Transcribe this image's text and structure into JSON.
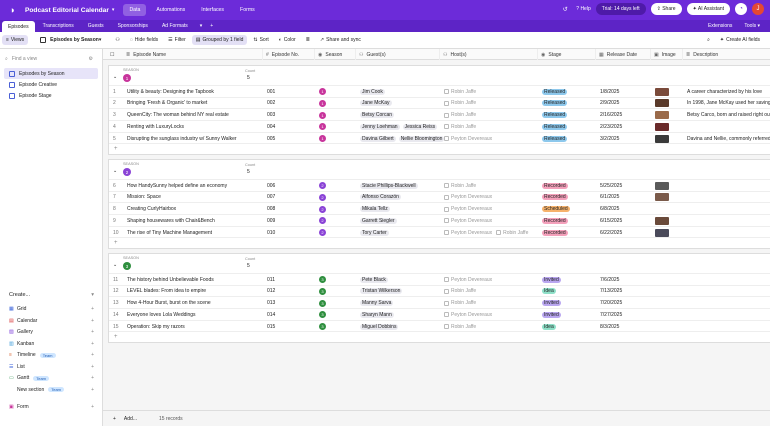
{
  "app": {
    "title": "Podcast Editorial Calendar",
    "nav": [
      "Data",
      "Automations",
      "Interfaces",
      "Forms"
    ],
    "help": "Help",
    "trial": "Trial: 14 days left",
    "share": "Share",
    "ai": "AI Assistant",
    "avatar": "J"
  },
  "tabs": {
    "items": [
      "Episodes",
      "Transcriptions",
      "Guests",
      "Sponsorships",
      "Ad Formats"
    ],
    "extensions": "Extensions",
    "tools": "Tools"
  },
  "toolbar": {
    "views": "Views",
    "view_name": "Episodes by Season",
    "hide": "Hide fields",
    "filter": "Filter",
    "group": "Grouped by 1 field",
    "sort": "Sort",
    "color": "Color",
    "share": "Share and sync",
    "ai_fields": "Create AI fields"
  },
  "sidebar": {
    "find": "Find a view",
    "views": [
      "Episodes by Season",
      "Episode Creative",
      "Episode Stage"
    ],
    "create_label": "Create...",
    "create_items": [
      {
        "label": "Grid",
        "team": ""
      },
      {
        "label": "Calendar",
        "team": ""
      },
      {
        "label": "Gallery",
        "team": ""
      },
      {
        "label": "Kanban",
        "team": ""
      },
      {
        "label": "Timeline",
        "team": "Team"
      },
      {
        "label": "List",
        "team": ""
      },
      {
        "label": "Gantt",
        "team": "Team"
      },
      {
        "label": "New section",
        "team": "Team"
      },
      {
        "label": "Form",
        "team": ""
      }
    ]
  },
  "columns": [
    "Episode Name",
    "Episode No.",
    "Season",
    "Guest(s)",
    "Host(s)",
    "Stage",
    "Release Date",
    "Image",
    "Description"
  ],
  "group_label": "SEASON",
  "count_label": "Count",
  "groups": [
    {
      "num": "1",
      "color": "#c8359c",
      "count": "5",
      "rows": [
        {
          "i": "1",
          "name": "Utility & beauty: Designing the Tapbook",
          "no": "001",
          "guests": [
            "Jim Cook"
          ],
          "hosts": [
            "Robin Jaffe"
          ],
          "stage": "Released",
          "sc": "#8dc8ec",
          "date": "1/8/2025",
          "img": "#7a4a3a",
          "desc": "A career characterized by his love"
        },
        {
          "i": "2",
          "name": "Bringing 'Fresh & Organic' to market",
          "no": "002",
          "guests": [
            "Jane McKay"
          ],
          "hosts": [
            "Robin Jaffe"
          ],
          "stage": "Released",
          "sc": "#8dc8ec",
          "date": "2/9/2025",
          "img": "#5a3a2a",
          "desc": "In 1998, Jane McKay used her savings"
        },
        {
          "i": "3",
          "name": "QueenCity: The woman behind NY real estate",
          "no": "003",
          "guests": [
            "Betsy Corcan"
          ],
          "hosts": [
            "Robin Jaffe"
          ],
          "stage": "Released",
          "sc": "#8dc8ec",
          "date": "2/16/2025",
          "img": "#9a6a4a",
          "desc": "Betsy Carco, born and raised right ou"
        },
        {
          "i": "4",
          "name": "Renting with LuxuryLocks",
          "no": "004",
          "guests": [
            "Jenny Loehman",
            "Jessica Reiss"
          ],
          "hosts": [
            "Robin Jaffe"
          ],
          "stage": "Released",
          "sc": "#8dc8ec",
          "date": "2/23/2025",
          "img": "#6a2a2a",
          "desc": ""
        },
        {
          "i": "5",
          "name": "Disrupting the sunglass industry w/ Sunny Walker",
          "no": "005",
          "guests": [
            "Davina Gilbert",
            "Nellie Bloomington"
          ],
          "hosts": [
            "Peyton Devereaux"
          ],
          "stage": "Released",
          "sc": "#8dc8ec",
          "date": "3/2/2025",
          "img": "#3a3a3a",
          "desc": "Davina and Nellie, commonly referred"
        }
      ]
    },
    {
      "num": "2",
      "color": "#8a43d6",
      "count": "5",
      "rows": [
        {
          "i": "6",
          "name": "How HandySunny helped define an economy",
          "no": "006",
          "guests": [
            "Stacie Phillips-Blackwell"
          ],
          "hosts": [
            "Robin Jaffe"
          ],
          "stage": "Recorded",
          "sc": "#f4a0bb",
          "date": "5/25/2025",
          "img": "#5a5a5a",
          "desc": ""
        },
        {
          "i": "7",
          "name": "Mission: Space",
          "no": "007",
          "guests": [
            "Alfonso Corazón"
          ],
          "hosts": [
            "Peyton Devereaux"
          ],
          "stage": "Recorded",
          "sc": "#f4a0bb",
          "date": "6/1/2025",
          "img": "#7a5a4a",
          "desc": ""
        },
        {
          "i": "8",
          "name": "Creating CurlyHairbox",
          "no": "008",
          "guests": [
            "Mikala Tellz"
          ],
          "hosts": [
            "Peyton Devereaux"
          ],
          "stage": "Scheduled",
          "sc": "#f6b26b",
          "date": "6/8/2025",
          "img": "",
          "desc": ""
        },
        {
          "i": "9",
          "name": "Shaping housewares with Chair&Bench",
          "no": "009",
          "guests": [
            "Garrett Siegler"
          ],
          "hosts": [
            "Peyton Devereaux"
          ],
          "stage": "Recorded",
          "sc": "#f4a0bb",
          "date": "6/15/2025",
          "img": "#6a4a3a",
          "desc": ""
        },
        {
          "i": "10",
          "name": "The rise of Tiny Machine Management",
          "no": "010",
          "guests": [
            "Tory Carter"
          ],
          "hosts": [
            "Peyton Devereaux",
            "Robin Jaffe"
          ],
          "stage": "Recorded",
          "sc": "#f4a0bb",
          "date": "6/22/2025",
          "img": "#4a4a5a",
          "desc": ""
        }
      ]
    },
    {
      "num": "3",
      "color": "#2f8f3f",
      "count": "5",
      "rows": [
        {
          "i": "11",
          "name": "The history behind Unbelievable Foods",
          "no": "011",
          "guests": [
            "Pete Black"
          ],
          "hosts": [
            "Peyton Devereaux"
          ],
          "stage": "Invited",
          "sc": "#b9a6f0",
          "date": "7/6/2025",
          "img": "",
          "desc": ""
        },
        {
          "i": "12",
          "name": "LEVEL blades: From idea to empire",
          "no": "012",
          "guests": [
            "Tristan Wilkerson"
          ],
          "hosts": [
            "Robin Jaffe"
          ],
          "stage": "Idea",
          "sc": "#8ee0c8",
          "date": "7/13/2025",
          "img": "",
          "desc": ""
        },
        {
          "i": "13",
          "name": "How 4-Hour Burst, burst on the scene",
          "no": "013",
          "guests": [
            "Manny Sarva"
          ],
          "hosts": [
            "Robin Jaffe"
          ],
          "stage": "Invited",
          "sc": "#b9a6f0",
          "date": "7/20/2025",
          "img": "",
          "desc": ""
        },
        {
          "i": "14",
          "name": "Everyone loves Lola Weddings",
          "no": "014",
          "guests": [
            "Sharyn Mann"
          ],
          "hosts": [
            "Peyton Devereaux"
          ],
          "stage": "Invited",
          "sc": "#b9a6f0",
          "date": "7/27/2025",
          "img": "",
          "desc": ""
        },
        {
          "i": "15",
          "name": "Operation: Skip my razors",
          "no": "015",
          "guests": [
            "Miguel Dobbins"
          ],
          "hosts": [
            "Robin Jaffe"
          ],
          "stage": "Idea",
          "sc": "#8ee0c8",
          "date": "8/3/2025",
          "img": "",
          "desc": ""
        }
      ]
    }
  ],
  "footer": {
    "add": "Add...",
    "records": "15 records"
  }
}
